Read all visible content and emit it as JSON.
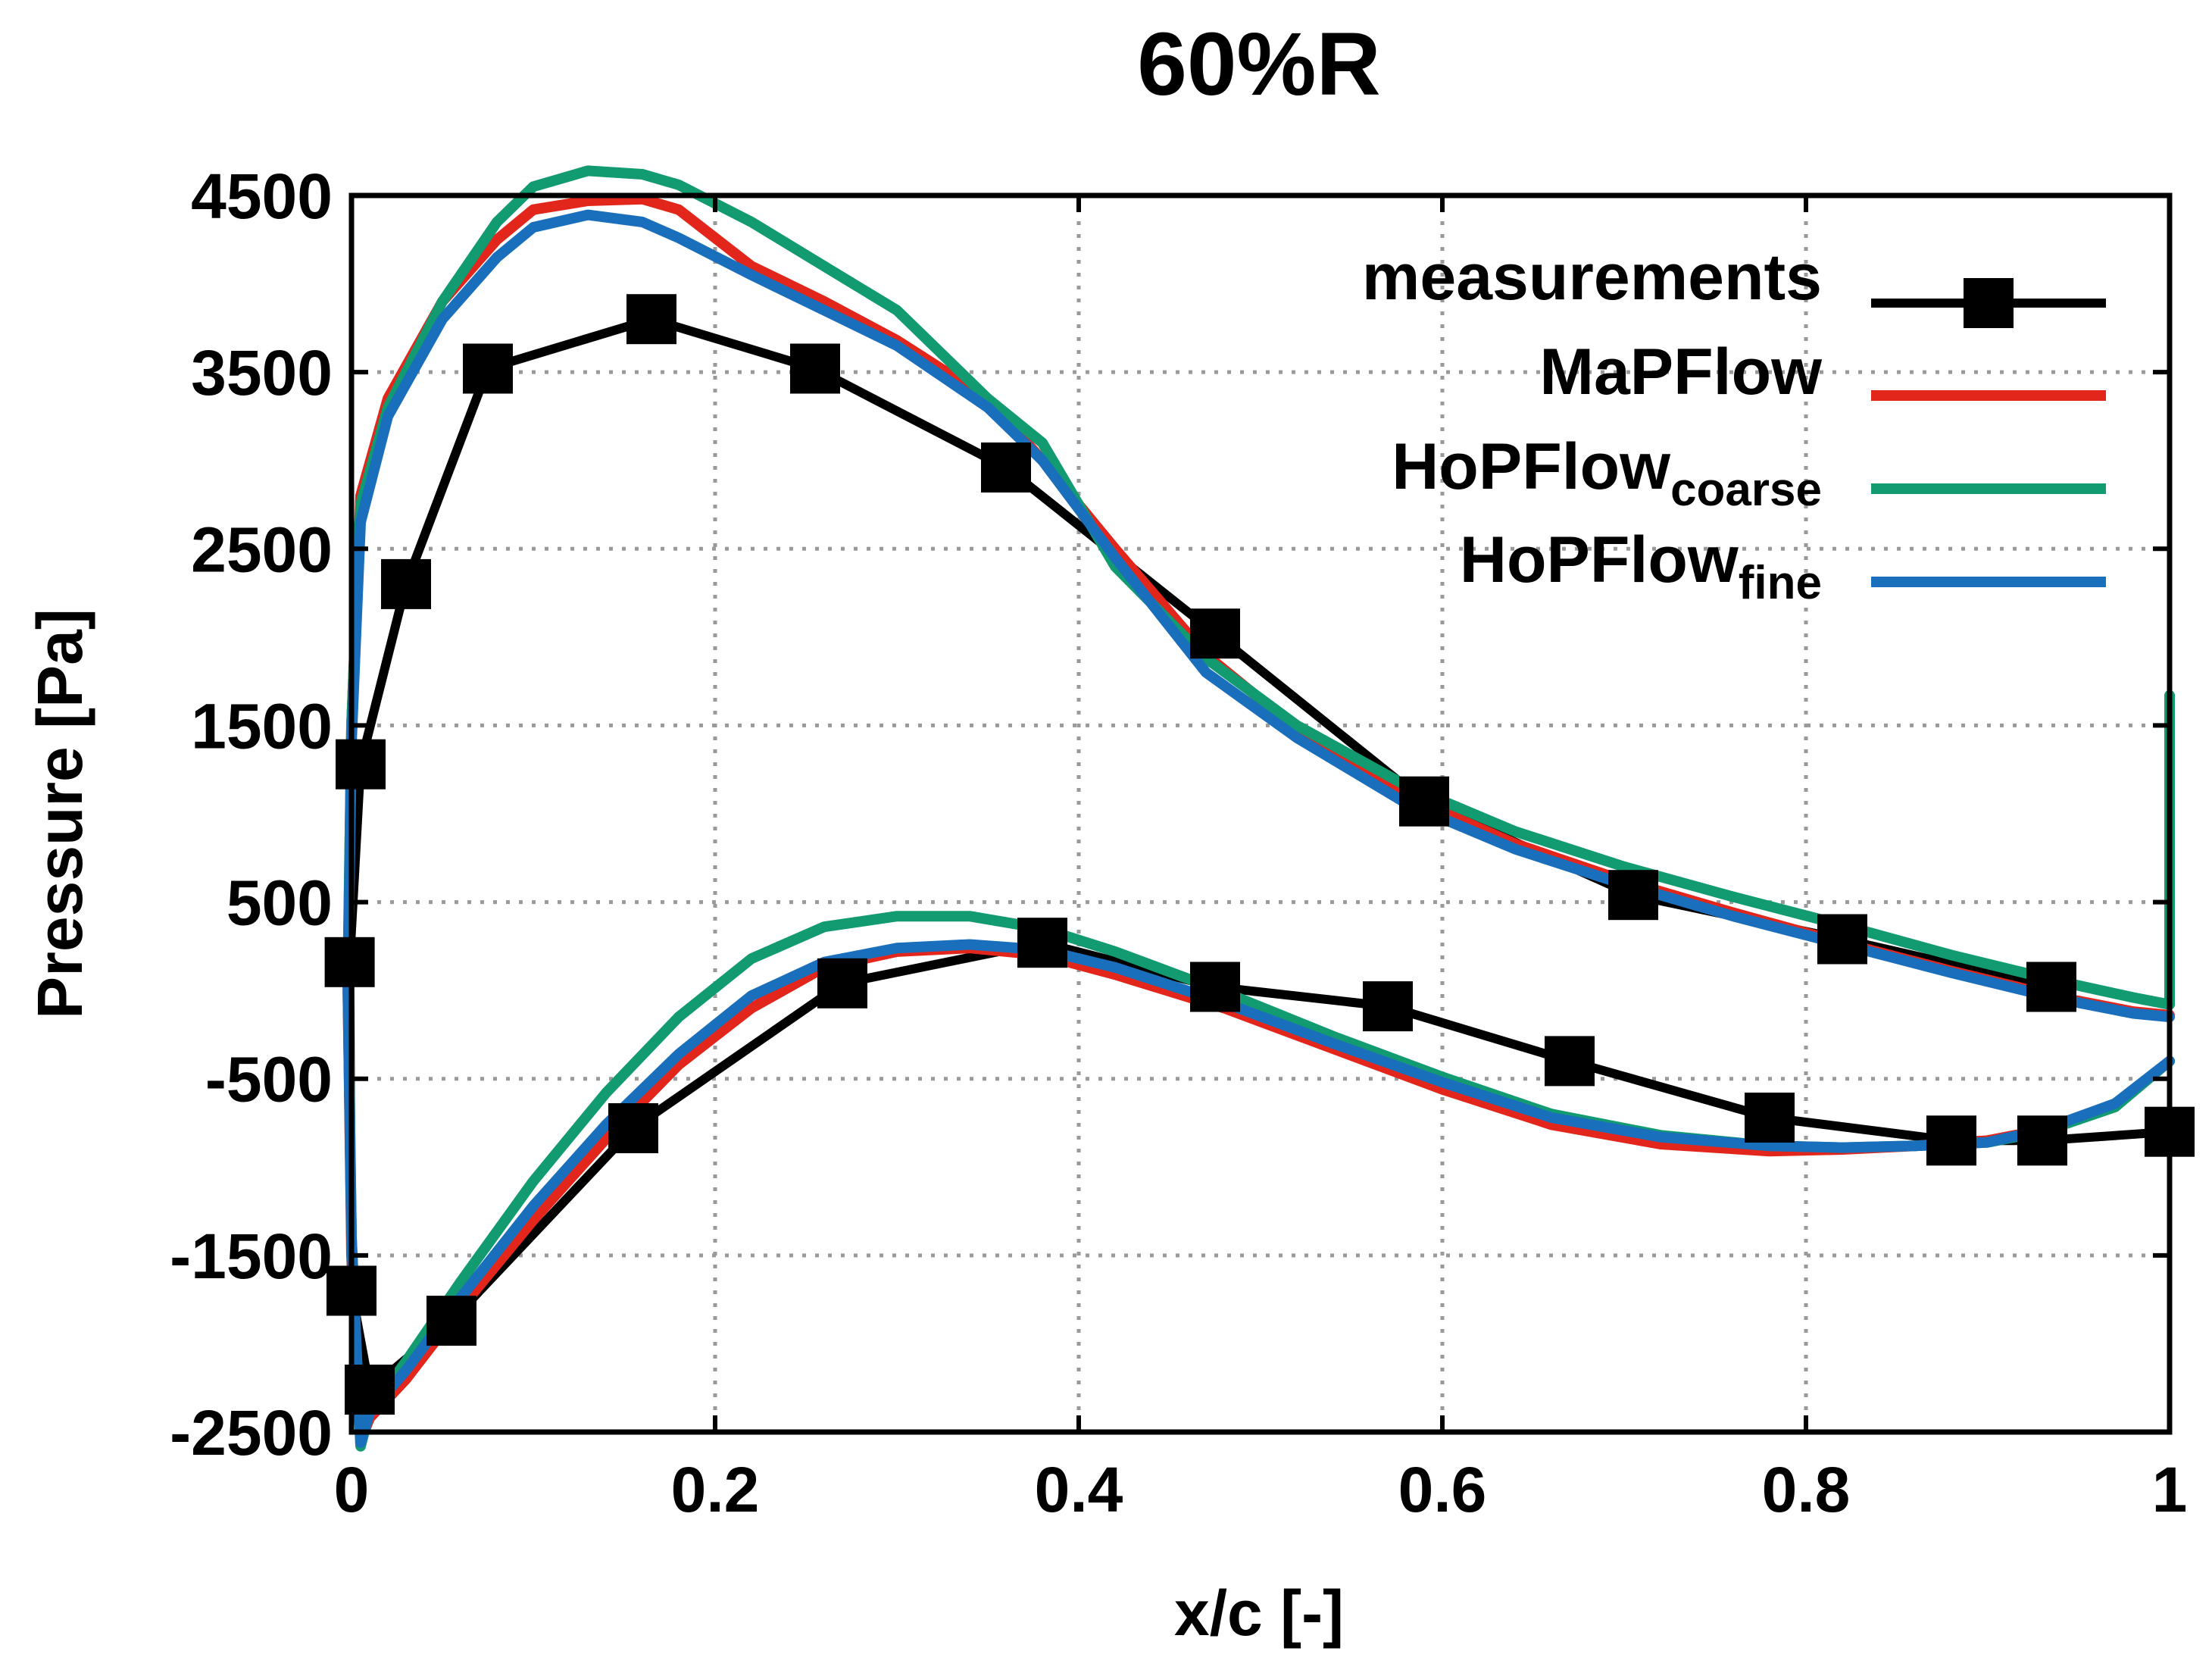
{
  "chart_data": {
    "type": "line",
    "title": "60%R",
    "xlabel": "x/c [-]",
    "ylabel": "Pressure [Pa]",
    "xlim": [
      0,
      1
    ],
    "ylim": [
      -2500,
      4500
    ],
    "xticks": [
      0,
      0.2,
      0.4,
      0.6,
      0.8,
      1
    ],
    "xtick_labels": [
      "0",
      "0.2",
      "0.4",
      "0.6",
      "0.8",
      "1"
    ],
    "yticks": [
      -2500,
      -1500,
      -500,
      500,
      1500,
      2500,
      3500,
      4500
    ],
    "ytick_labels": [
      "-2500",
      "-1500",
      "-500",
      "500",
      "1500",
      "2500",
      "3500",
      "4500"
    ],
    "grid": true,
    "legend_position": "top-right",
    "legend": [
      {
        "label": "measurements",
        "sub": ""
      },
      {
        "label": "MaPFlow",
        "sub": ""
      },
      {
        "label": "HoPFlow",
        "sub": "coarse"
      },
      {
        "label": "HoPFlow",
        "sub": "fine"
      }
    ],
    "series": [
      {
        "name": "measurements",
        "color": "#000000",
        "marker": "square",
        "x": [
          1.0,
          0.93,
          0.88,
          0.78,
          0.67,
          0.57,
          0.475,
          0.38,
          0.27,
          0.155,
          0.055,
          0.01,
          0.0,
          -0.001,
          0.005,
          0.03,
          0.075,
          0.165,
          0.255,
          0.36,
          0.475,
          0.59,
          0.705,
          0.82,
          0.935
        ],
        "y": [
          -800,
          -850,
          -850,
          -720,
          -400,
          -90,
          20,
          270,
          40,
          -780,
          -1870,
          -2260,
          -1700,
          160,
          1280,
          2300,
          3520,
          3800,
          3520,
          2960,
          2020,
          1070,
          540,
          290,
          20
        ]
      },
      {
        "name": "MaPFlow",
        "color": "#e3261c",
        "x": [
          1.0,
          0.97,
          0.93,
          0.9,
          0.86,
          0.82,
          0.78,
          0.72,
          0.66,
          0.6,
          0.54,
          0.48,
          0.42,
          0.38,
          0.34,
          0.3,
          0.26,
          0.22,
          0.18,
          0.14,
          0.1,
          0.06,
          0.03,
          0.01,
          0.005,
          0.0,
          -0.002,
          0.0,
          0.005,
          0.02,
          0.05,
          0.08,
          0.1,
          0.13,
          0.16,
          0.18,
          0.22,
          0.26,
          0.3,
          0.35,
          0.38,
          0.42,
          0.47,
          0.52,
          0.58,
          0.64,
          0.7,
          0.76,
          0.82,
          0.88,
          0.94,
          0.98,
          1.0
        ],
        "y": [
          -400,
          -650,
          -790,
          -850,
          -880,
          -900,
          -910,
          -870,
          -760,
          -560,
          -330,
          -100,
          90,
          200,
          240,
          220,
          130,
          -100,
          -420,
          -840,
          -1300,
          -1800,
          -2200,
          -2420,
          -2550,
          -1500,
          0,
          1500,
          2800,
          3350,
          3900,
          4250,
          4420,
          4470,
          4480,
          4420,
          4100,
          3900,
          3680,
          3350,
          3000,
          2500,
          1900,
          1480,
          1100,
          830,
          620,
          440,
          270,
          110,
          -40,
          -120,
          -140
        ]
      },
      {
        "name": "HoPFlow coarse",
        "color": "#129a70",
        "x": [
          1.0,
          0.97,
          0.93,
          0.9,
          0.86,
          0.82,
          0.78,
          0.72,
          0.66,
          0.6,
          0.54,
          0.48,
          0.42,
          0.38,
          0.34,
          0.3,
          0.26,
          0.22,
          0.18,
          0.14,
          0.1,
          0.06,
          0.03,
          0.01,
          0.005,
          0.0,
          -0.002,
          0.0,
          0.005,
          0.02,
          0.05,
          0.08,
          0.1,
          0.13,
          0.16,
          0.18,
          0.22,
          0.26,
          0.3,
          0.35,
          0.38,
          0.42,
          0.47,
          0.52,
          0.58,
          0.64,
          0.7,
          0.76,
          0.82,
          0.88,
          0.94,
          0.98,
          1.0,
          1.0
        ],
        "y": [
          -400,
          -660,
          -800,
          -860,
          -880,
          -890,
          -880,
          -820,
          -700,
          -490,
          -260,
          -10,
          220,
          350,
          420,
          420,
          360,
          180,
          -150,
          -580,
          -1080,
          -1650,
          -2100,
          -2380,
          -2580,
          -1400,
          100,
          1500,
          2750,
          3300,
          3900,
          4350,
          4550,
          4640,
          4620,
          4560,
          4350,
          4100,
          3850,
          3350,
          3100,
          2400,
          1880,
          1500,
          1160,
          900,
          700,
          530,
          370,
          200,
          50,
          -40,
          -80,
          1670
        ]
      },
      {
        "name": "HoPFlow fine",
        "color": "#1a6fbc",
        "x": [
          1.0,
          0.97,
          0.93,
          0.9,
          0.86,
          0.82,
          0.78,
          0.72,
          0.66,
          0.6,
          0.54,
          0.48,
          0.42,
          0.38,
          0.34,
          0.3,
          0.26,
          0.22,
          0.18,
          0.14,
          0.1,
          0.06,
          0.03,
          0.01,
          0.005,
          0.0,
          -0.002,
          0.0,
          0.005,
          0.02,
          0.05,
          0.08,
          0.1,
          0.13,
          0.16,
          0.18,
          0.22,
          0.26,
          0.3,
          0.35,
          0.38,
          0.42,
          0.47,
          0.52,
          0.58,
          0.64,
          0.7,
          0.76,
          0.82,
          0.88,
          0.94,
          0.98,
          1.0
        ],
        "y": [
          -400,
          -640,
          -790,
          -860,
          -880,
          -890,
          -880,
          -830,
          -720,
          -520,
          -300,
          -70,
          130,
          230,
          260,
          240,
          160,
          -30,
          -360,
          -760,
          -1220,
          -1740,
          -2150,
          -2390,
          -2560,
          -1400,
          0,
          1400,
          2650,
          3250,
          3800,
          4150,
          4320,
          4390,
          4350,
          4260,
          4050,
          3850,
          3650,
          3300,
          3000,
          2450,
          1800,
          1430,
          1060,
          800,
          600,
          420,
          260,
          100,
          -50,
          -130,
          -150
        ]
      }
    ]
  }
}
